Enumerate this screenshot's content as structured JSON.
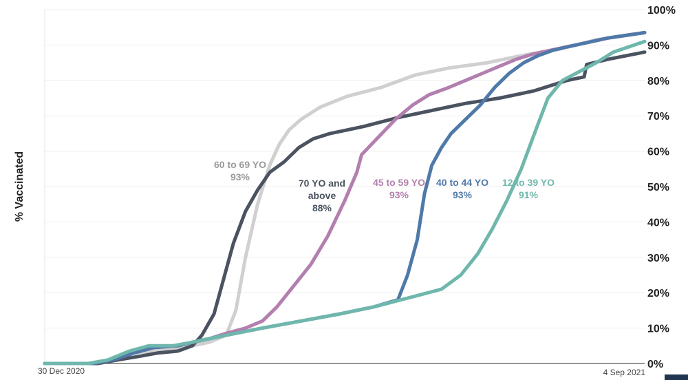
{
  "chart_data": {
    "type": "line",
    "title": "",
    "xlabel": "",
    "ylabel": "% Vaccinated",
    "ylim": [
      0,
      100
    ],
    "y_ticks": [
      "0%",
      "10%",
      "20%",
      "30%",
      "40%",
      "50%",
      "60%",
      "70%",
      "80%",
      "90%",
      "100%"
    ],
    "x_range": [
      "2020-12-30",
      "2021-09-04"
    ],
    "x_tick_labels": {
      "start": "30 Dec 2020",
      "end": "4 Sep 2021"
    },
    "grid": "horizontal",
    "series": [
      {
        "key": "age_60_69",
        "label_lines": [
          "60 to 69 YO",
          "93%"
        ],
        "color": "#d0d0d0",
        "x": [
          "2020-12-30",
          "2021-01-19",
          "2021-01-27",
          "2021-02-05",
          "2021-02-13",
          "2021-02-20",
          "2021-03-01",
          "2021-03-08",
          "2021-03-15",
          "2021-03-19",
          "2021-03-23",
          "2021-03-28",
          "2021-04-02",
          "2021-04-06",
          "2021-04-10",
          "2021-04-15",
          "2021-04-23",
          "2021-05-04",
          "2021-05-18",
          "2021-06-01",
          "2021-06-15",
          "2021-07-01",
          "2021-07-15",
          "2021-08-01",
          "2021-08-15",
          "2021-09-04"
        ],
        "values": [
          0,
          0,
          1,
          3,
          3.5,
          4,
          5,
          6,
          8,
          15,
          30,
          45,
          56,
          62,
          66,
          69,
          72.5,
          75.5,
          78,
          81.5,
          83.5,
          85,
          87,
          89,
          91.5,
          93.5
        ]
      },
      {
        "key": "age_70_plus",
        "label_lines": [
          "70 YO and",
          "above",
          "88%"
        ],
        "color": "#4b5360",
        "x": [
          "2020-12-30",
          "2021-01-21",
          "2021-01-29",
          "2021-02-07",
          "2021-02-15",
          "2021-02-23",
          "2021-03-01",
          "2021-03-05",
          "2021-03-10",
          "2021-03-14",
          "2021-03-18",
          "2021-03-23",
          "2021-03-28",
          "2021-04-02",
          "2021-04-08",
          "2021-04-14",
          "2021-04-20",
          "2021-04-27",
          "2021-05-04",
          "2021-05-11",
          "2021-05-25",
          "2021-06-08",
          "2021-06-22",
          "2021-07-06",
          "2021-07-20",
          "2021-08-03",
          "2021-08-10",
          "2021-08-11",
          "2021-08-20",
          "2021-09-04"
        ],
        "values": [
          0,
          0,
          1,
          2,
          3,
          3.5,
          5,
          8,
          14,
          24,
          34,
          43,
          49,
          54,
          57,
          61,
          63.5,
          65,
          66,
          67,
          69.5,
          71.5,
          73.5,
          75,
          77,
          80,
          81,
          84.5,
          86,
          88
        ]
      },
      {
        "key": "age_45_59",
        "label_lines": [
          "45 to 59 YO",
          "93%"
        ],
        "color": "#b27fae",
        "x": [
          "2020-12-30",
          "2021-01-19",
          "2021-01-27",
          "2021-02-05",
          "2021-02-13",
          "2021-02-23",
          "2021-03-01",
          "2021-03-08",
          "2021-03-15",
          "2021-03-23",
          "2021-03-30",
          "2021-04-05",
          "2021-04-12",
          "2021-04-19",
          "2021-04-26",
          "2021-05-03",
          "2021-05-08",
          "2021-05-10",
          "2021-05-17",
          "2021-05-24",
          "2021-05-31",
          "2021-06-07",
          "2021-06-15",
          "2021-06-22",
          "2021-06-29",
          "2021-07-06",
          "2021-07-13",
          "2021-07-20",
          "2021-07-27",
          "2021-08-03",
          "2021-08-10",
          "2021-08-20",
          "2021-09-04"
        ],
        "values": [
          0,
          0,
          1,
          3,
          4.5,
          5,
          6,
          7,
          8.5,
          10,
          12,
          16,
          22,
          28,
          36,
          46,
          54,
          59,
          64,
          69,
          73,
          76,
          78,
          80,
          82,
          84,
          86,
          87.5,
          88.5,
          89.5,
          90.5,
          92,
          93.5
        ]
      },
      {
        "key": "age_40_44",
        "label_lines": [
          "40 to 44 YO",
          "93%"
        ],
        "color": "#4f79a8",
        "x": [
          "2020-12-30",
          "2021-01-19",
          "2021-01-27",
          "2021-02-05",
          "2021-02-13",
          "2021-02-23",
          "2021-03-01",
          "2021-03-08",
          "2021-03-15",
          "2021-03-30",
          "2021-04-15",
          "2021-05-01",
          "2021-05-15",
          "2021-05-25",
          "2021-05-29",
          "2021-06-02",
          "2021-06-05",
          "2021-06-08",
          "2021-06-12",
          "2021-06-16",
          "2021-06-22",
          "2021-06-28",
          "2021-07-04",
          "2021-07-10",
          "2021-07-16",
          "2021-07-22",
          "2021-07-28",
          "2021-08-03",
          "2021-08-10",
          "2021-08-20",
          "2021-09-04"
        ],
        "values": [
          0,
          0,
          1,
          3,
          4.5,
          5,
          6,
          7,
          8,
          10,
          12,
          14,
          16,
          18,
          25,
          35,
          48,
          56,
          61,
          65,
          69,
          73,
          78,
          82,
          85,
          87,
          88.5,
          89.5,
          90.5,
          92,
          93.5
        ]
      },
      {
        "key": "age_12_39",
        "label_lines": [
          "12 to 39 YO",
          "91%"
        ],
        "color": "#6fb7ac",
        "x": [
          "2020-12-30",
          "2021-01-17",
          "2021-01-25",
          "2021-02-03",
          "2021-02-11",
          "2021-02-21",
          "2021-03-01",
          "2021-03-08",
          "2021-03-15",
          "2021-03-30",
          "2021-04-15",
          "2021-05-01",
          "2021-05-15",
          "2021-06-01",
          "2021-06-12",
          "2021-06-20",
          "2021-06-27",
          "2021-07-03",
          "2021-07-09",
          "2021-07-15",
          "2021-07-21",
          "2021-07-26",
          "2021-08-01",
          "2021-08-08",
          "2021-08-15",
          "2021-08-22",
          "2021-09-04"
        ],
        "values": [
          0,
          0,
          1,
          3.5,
          5,
          5,
          6,
          7,
          8,
          10,
          12,
          14,
          16,
          19,
          21,
          25,
          31,
          38,
          46,
          55,
          66,
          75,
          80,
          82.5,
          85,
          88,
          91
        ]
      }
    ]
  }
}
